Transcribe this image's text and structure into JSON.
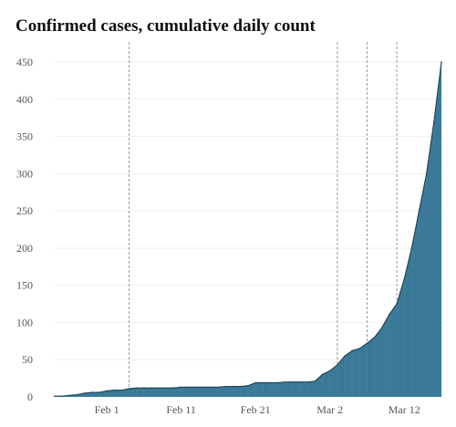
{
  "chart_data": {
    "type": "area",
    "title": "Confirmed cases, cumulative daily count",
    "xlabel": "",
    "ylabel": "",
    "ylim": [
      0,
      460
    ],
    "y_ticks": [
      0,
      50,
      100,
      150,
      200,
      250,
      300,
      350,
      400,
      450
    ],
    "x_ticks": [
      "Feb 1",
      "Feb 11",
      "Feb 21",
      "Mar 2",
      "Mar 12"
    ],
    "x_tick_dates": [
      "2020-02-01",
      "2020-02-11",
      "2020-02-21",
      "2020-03-02",
      "2020-03-12"
    ],
    "xlim": [
      "2020-01-25",
      "2020-03-17"
    ],
    "grid": true,
    "area_color": "#3a7997",
    "line_color": "#1e4a60",
    "event_lines": [
      "2020-02-04",
      "2020-03-03",
      "2020-03-07",
      "2020-03-11"
    ],
    "series": [
      {
        "x": [
          "2020-01-25",
          "2020-01-26",
          "2020-01-27",
          "2020-01-28",
          "2020-01-29",
          "2020-01-30",
          "2020-01-31",
          "2020-02-01",
          "2020-02-02",
          "2020-02-03",
          "2020-02-04",
          "2020-02-05",
          "2020-02-06",
          "2020-02-07",
          "2020-02-08",
          "2020-02-09",
          "2020-02-10",
          "2020-02-11",
          "2020-02-12",
          "2020-02-13",
          "2020-02-14",
          "2020-02-15",
          "2020-02-16",
          "2020-02-17",
          "2020-02-18",
          "2020-02-19",
          "2020-02-20",
          "2020-02-21",
          "2020-02-22",
          "2020-02-23",
          "2020-02-24",
          "2020-02-25",
          "2020-02-26",
          "2020-02-27",
          "2020-02-28",
          "2020-02-29",
          "2020-03-01",
          "2020-03-02",
          "2020-03-03",
          "2020-03-04",
          "2020-03-05",
          "2020-03-06",
          "2020-03-07",
          "2020-03-08",
          "2020-03-09",
          "2020-03-10",
          "2020-03-11",
          "2020-03-12",
          "2020-03-13",
          "2020-03-14",
          "2020-03-15",
          "2020-03-16",
          "2020-03-17"
        ],
        "values": [
          1,
          1,
          2,
          3,
          5,
          6,
          6,
          8,
          9,
          9,
          11,
          12,
          12,
          12,
          12,
          12,
          12,
          13,
          13,
          13,
          13,
          13,
          13,
          14,
          14,
          14,
          15,
          19,
          19,
          19,
          19,
          20,
          20,
          20,
          20,
          21,
          30,
          35,
          43,
          55,
          62,
          65,
          72,
          80,
          93,
          111,
          125,
          158,
          200,
          250,
          300,
          370,
          450
        ]
      }
    ]
  }
}
